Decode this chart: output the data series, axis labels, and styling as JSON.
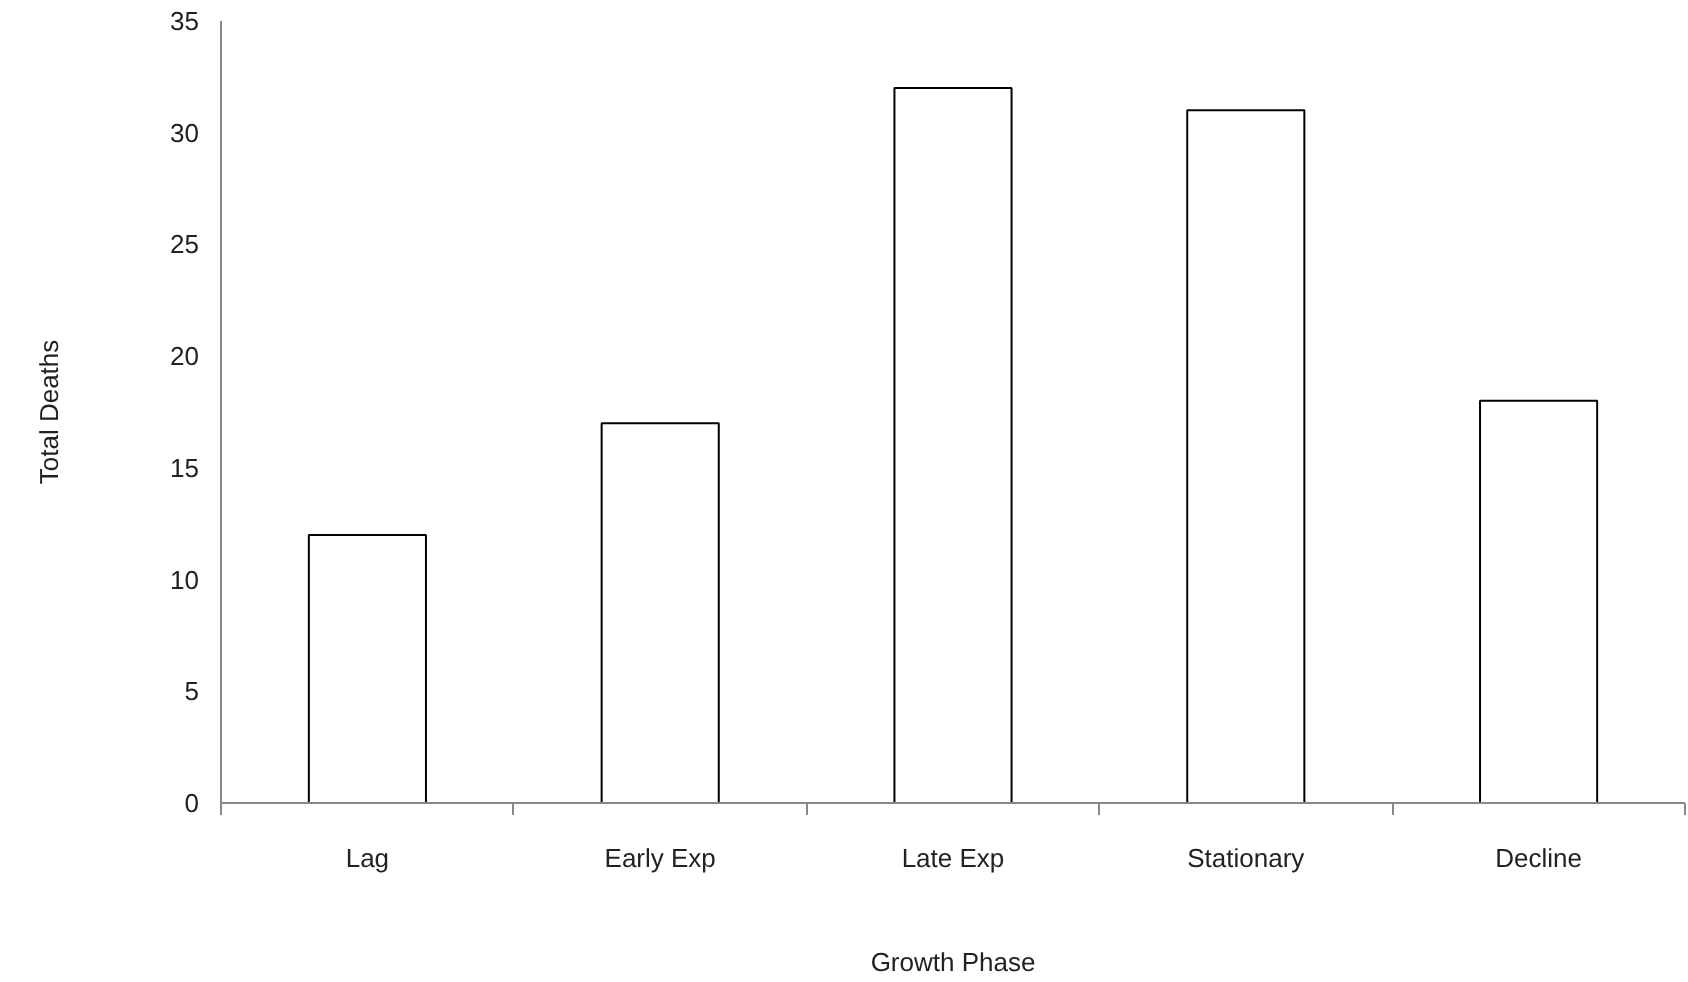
{
  "chart_data": {
    "type": "bar",
    "xlabel": "Growth Phase",
    "ylabel": "Total Deaths",
    "categories": [
      "Lag",
      "Early Exp",
      "Late Exp",
      "Stationary",
      "Decline"
    ],
    "values": [
      12,
      17,
      32,
      31,
      18
    ],
    "color": "#ffffff",
    "ylim": [
      0,
      35
    ],
    "yticks": [
      0,
      5,
      10,
      15,
      20,
      25,
      30,
      35
    ],
    "grid": false
  }
}
